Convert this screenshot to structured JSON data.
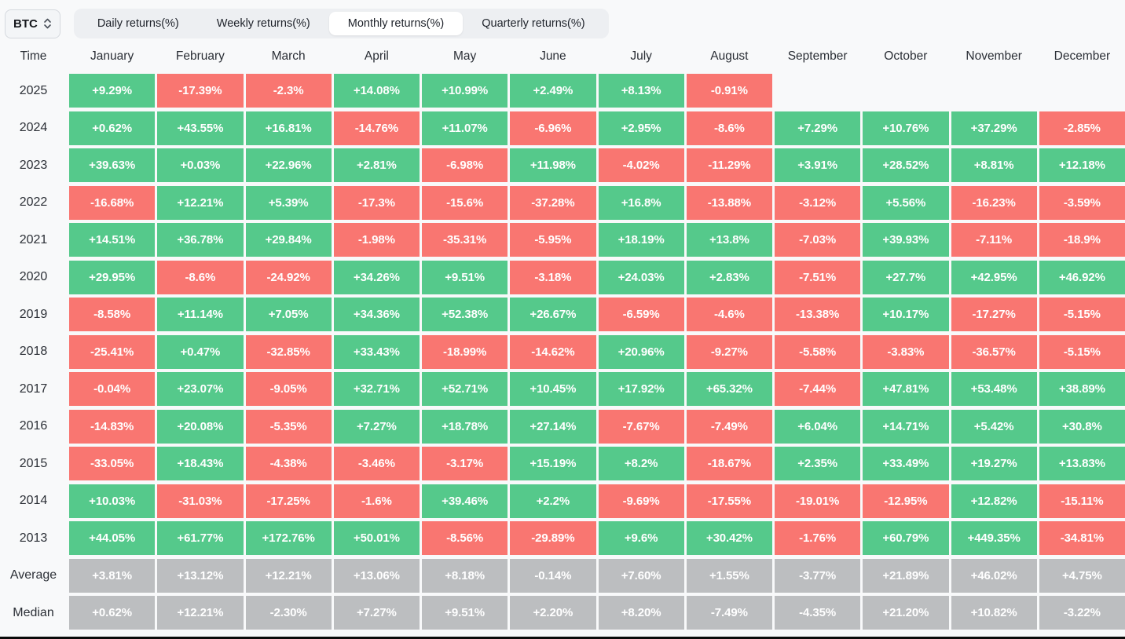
{
  "controls": {
    "symbol": "BTC",
    "tabs": [
      "Daily returns(%)",
      "Weekly returns(%)",
      "Monthly returns(%)",
      "Quarterly returns(%)"
    ],
    "active_tab_index": 2
  },
  "table": {
    "time_header": "Time",
    "months": [
      "January",
      "February",
      "March",
      "April",
      "May",
      "June",
      "July",
      "August",
      "September",
      "October",
      "November",
      "December"
    ],
    "rows": [
      {
        "label": "2025",
        "type": "year",
        "values": [
          "+9.29%",
          "-17.39%",
          "-2.3%",
          "+14.08%",
          "+10.99%",
          "+2.49%",
          "+8.13%",
          "-0.91%",
          "",
          "",
          "",
          ""
        ]
      },
      {
        "label": "2024",
        "type": "year",
        "values": [
          "+0.62%",
          "+43.55%",
          "+16.81%",
          "-14.76%",
          "+11.07%",
          "-6.96%",
          "+2.95%",
          "-8.6%",
          "+7.29%",
          "+10.76%",
          "+37.29%",
          "-2.85%"
        ]
      },
      {
        "label": "2023",
        "type": "year",
        "values": [
          "+39.63%",
          "+0.03%",
          "+22.96%",
          "+2.81%",
          "-6.98%",
          "+11.98%",
          "-4.02%",
          "-11.29%",
          "+3.91%",
          "+28.52%",
          "+8.81%",
          "+12.18%"
        ]
      },
      {
        "label": "2022",
        "type": "year",
        "values": [
          "-16.68%",
          "+12.21%",
          "+5.39%",
          "-17.3%",
          "-15.6%",
          "-37.28%",
          "+16.8%",
          "-13.88%",
          "-3.12%",
          "+5.56%",
          "-16.23%",
          "-3.59%"
        ]
      },
      {
        "label": "2021",
        "type": "year",
        "values": [
          "+14.51%",
          "+36.78%",
          "+29.84%",
          "-1.98%",
          "-35.31%",
          "-5.95%",
          "+18.19%",
          "+13.8%",
          "-7.03%",
          "+39.93%",
          "-7.11%",
          "-18.9%"
        ]
      },
      {
        "label": "2020",
        "type": "year",
        "values": [
          "+29.95%",
          "-8.6%",
          "-24.92%",
          "+34.26%",
          "+9.51%",
          "-3.18%",
          "+24.03%",
          "+2.83%",
          "-7.51%",
          "+27.7%",
          "+42.95%",
          "+46.92%"
        ]
      },
      {
        "label": "2019",
        "type": "year",
        "values": [
          "-8.58%",
          "+11.14%",
          "+7.05%",
          "+34.36%",
          "+52.38%",
          "+26.67%",
          "-6.59%",
          "-4.6%",
          "-13.38%",
          "+10.17%",
          "-17.27%",
          "-5.15%"
        ]
      },
      {
        "label": "2018",
        "type": "year",
        "values": [
          "-25.41%",
          "+0.47%",
          "-32.85%",
          "+33.43%",
          "-18.99%",
          "-14.62%",
          "+20.96%",
          "-9.27%",
          "-5.58%",
          "-3.83%",
          "-36.57%",
          "-5.15%"
        ]
      },
      {
        "label": "2017",
        "type": "year",
        "values": [
          "-0.04%",
          "+23.07%",
          "-9.05%",
          "+32.71%",
          "+52.71%",
          "+10.45%",
          "+17.92%",
          "+65.32%",
          "-7.44%",
          "+47.81%",
          "+53.48%",
          "+38.89%"
        ]
      },
      {
        "label": "2016",
        "type": "year",
        "values": [
          "-14.83%",
          "+20.08%",
          "-5.35%",
          "+7.27%",
          "+18.78%",
          "+27.14%",
          "-7.67%",
          "-7.49%",
          "+6.04%",
          "+14.71%",
          "+5.42%",
          "+30.8%"
        ]
      },
      {
        "label": "2015",
        "type": "year",
        "values": [
          "-33.05%",
          "+18.43%",
          "-4.38%",
          "-3.46%",
          "-3.17%",
          "+15.19%",
          "+8.2%",
          "-18.67%",
          "+2.35%",
          "+33.49%",
          "+19.27%",
          "+13.83%"
        ]
      },
      {
        "label": "2014",
        "type": "year",
        "values": [
          "+10.03%",
          "-31.03%",
          "-17.25%",
          "-1.6%",
          "+39.46%",
          "+2.2%",
          "-9.69%",
          "-17.55%",
          "-19.01%",
          "-12.95%",
          "+12.82%",
          "-15.11%"
        ]
      },
      {
        "label": "2013",
        "type": "year",
        "values": [
          "+44.05%",
          "+61.77%",
          "+172.76%",
          "+50.01%",
          "-8.56%",
          "-29.89%",
          "+9.6%",
          "+30.42%",
          "-1.76%",
          "+60.79%",
          "+449.35%",
          "-34.81%"
        ]
      },
      {
        "label": "Average",
        "type": "summary",
        "values": [
          "+3.81%",
          "+13.12%",
          "+12.21%",
          "+13.06%",
          "+8.18%",
          "-0.14%",
          "+7.60%",
          "+1.55%",
          "-3.77%",
          "+21.89%",
          "+46.02%",
          "+4.75%"
        ]
      },
      {
        "label": "Median",
        "type": "summary",
        "values": [
          "+0.62%",
          "+12.21%",
          "-2.30%",
          "+7.27%",
          "+9.51%",
          "+2.20%",
          "+8.20%",
          "-7.49%",
          "-4.35%",
          "+21.20%",
          "+10.82%",
          "-3.22%"
        ]
      }
    ]
  },
  "colors": {
    "positive": "#55c98b",
    "negative": "#f97671",
    "summary": "#bcbec0",
    "page_background": "#f8f9fa"
  }
}
